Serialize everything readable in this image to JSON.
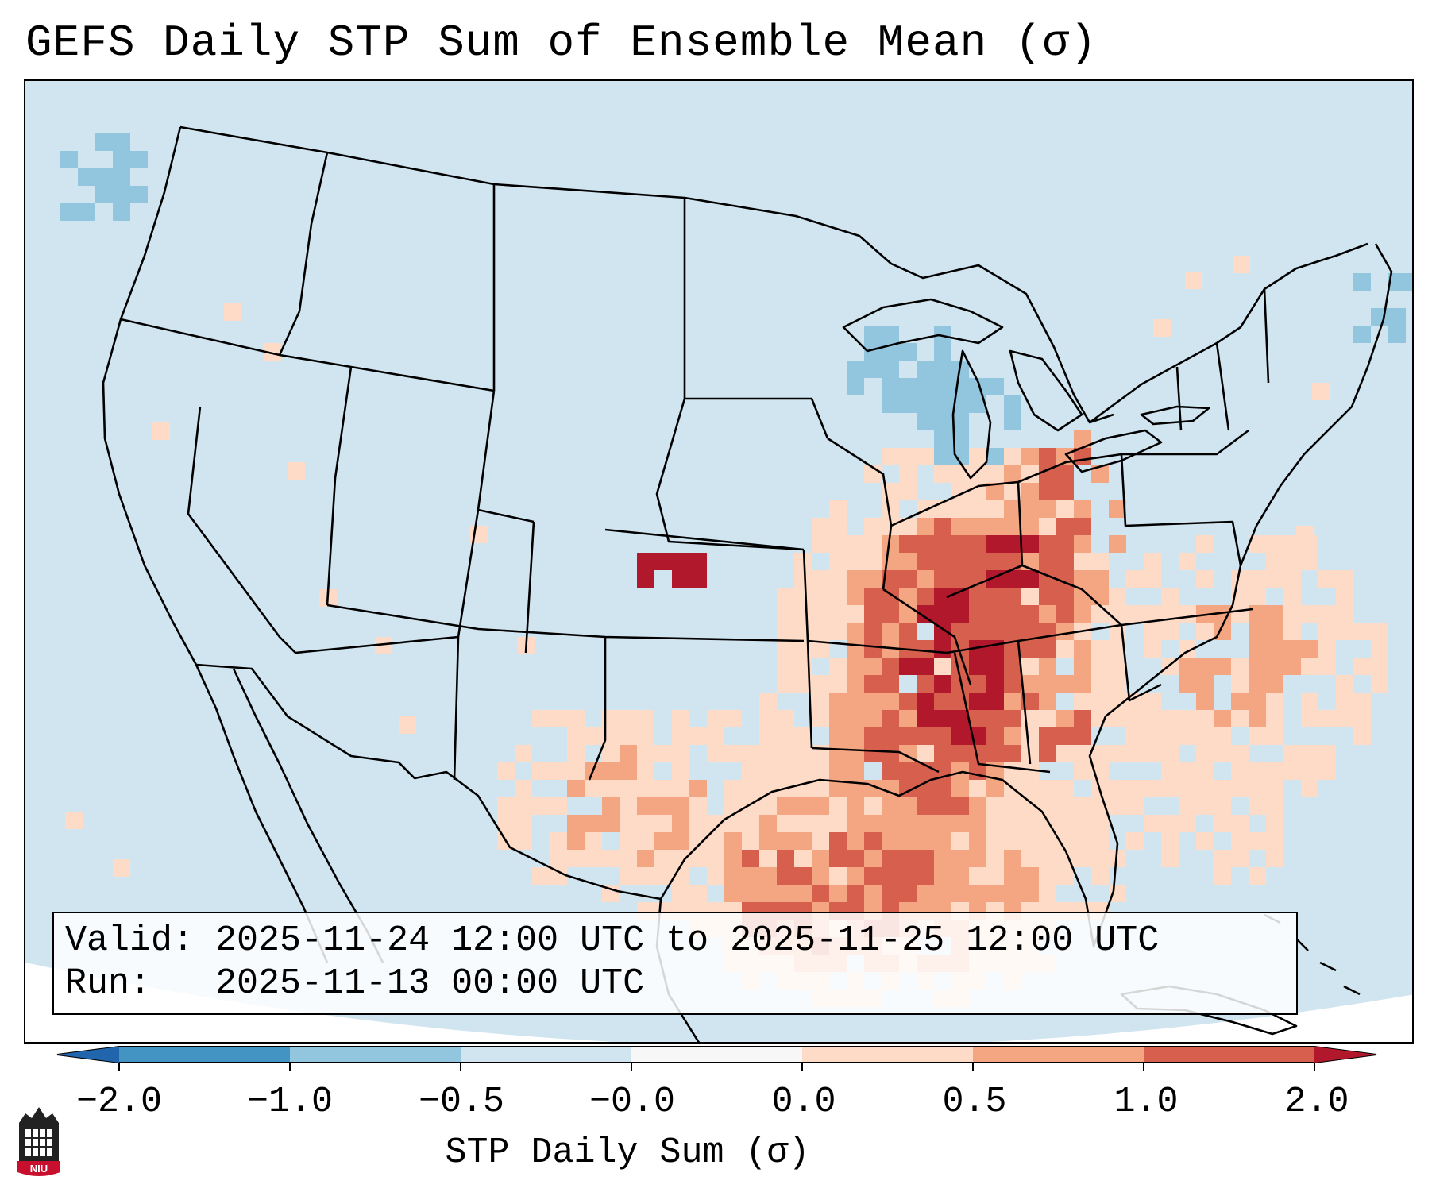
{
  "title": "GEFS Daily STP Sum of Ensemble Mean (σ)",
  "info": {
    "valid_label": "Valid:",
    "valid_value": "2025-11-24 12:00 UTC to 2025-11-25 12:00 UTC",
    "run_label": "Run:",
    "run_value": "2025-11-13 00:00 UTC"
  },
  "colorbar": {
    "title": "STP Daily Sum (σ)",
    "tick_labels": [
      "−2.0",
      "−1.0",
      "−0.5",
      "−0.0",
      "0.0",
      "0.5",
      "1.0",
      "2.0"
    ],
    "bins": [
      {
        "color": "#4393c3"
      },
      {
        "color": "#92c5de"
      },
      {
        "color": "#d1e5f0"
      },
      {
        "color": "#f7f7f7"
      },
      {
        "color": "#fddbc7"
      },
      {
        "color": "#f4a582"
      },
      {
        "color": "#d6604d"
      }
    ],
    "under_color": "#2166ac",
    "over_color": "#b2182b"
  },
  "map": {
    "background_color": "#d1e5f0",
    "projection": "Lambert Conformal (CONUS)",
    "highest_anomaly_regions": [
      "Ohio Valley",
      "Tennessee Valley",
      "Mid-South",
      "Gulf Coast",
      "Southern Plains"
    ]
  },
  "logo": {
    "text": "NIU"
  }
}
